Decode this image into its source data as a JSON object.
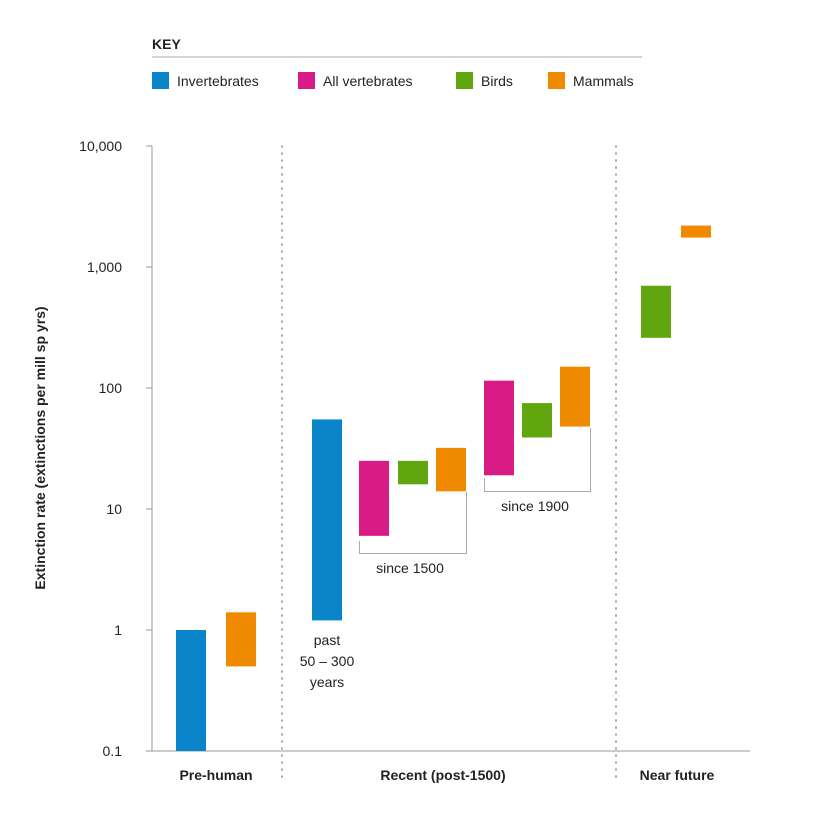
{
  "chart_data": {
    "type": "bar",
    "subtype": "floating-range",
    "title": "",
    "ylabel": "Extinction rate (extinctions per mill sp yrs)",
    "xlabel": "",
    "yscale": "log",
    "ylim": [
      0.1,
      10000
    ],
    "yticks": [
      "0.1",
      "1",
      "10",
      "100",
      "1,000",
      "10,000"
    ],
    "grid": false,
    "legend": {
      "title": "KEY",
      "placement": "top",
      "entries": [
        {
          "name": "Invertebrates",
          "color": "#0a85c9"
        },
        {
          "name": "All vertebrates",
          "color": "#d81b85"
        },
        {
          "name": "Birds",
          "color": "#61a60e"
        },
        {
          "name": "Mammals",
          "color": "#ef8a00"
        }
      ]
    },
    "categories": [
      "Pre-human",
      "Recent (post-1500)",
      "Near future"
    ],
    "annotations": {
      "past": "past",
      "past_range": "50 – 300",
      "past_years": "years",
      "since1500": "since 1500",
      "since1900": "since 1900"
    },
    "bars": [
      {
        "category": "Pre-human",
        "series": "Invertebrates",
        "low": 0.1,
        "high": 1
      },
      {
        "category": "Pre-human",
        "series": "Mammals",
        "low": 0.5,
        "high": 1.4
      },
      {
        "category": "Recent (post-1500)",
        "period": "past 50 – 300 years",
        "series": "Invertebrates",
        "low": 1.2,
        "high": 55
      },
      {
        "category": "Recent (post-1500)",
        "period": "since 1500",
        "series": "All vertebrates",
        "low": 6,
        "high": 25
      },
      {
        "category": "Recent (post-1500)",
        "period": "since 1500",
        "series": "Birds",
        "low": 16,
        "high": 25
      },
      {
        "category": "Recent (post-1500)",
        "period": "since 1500",
        "series": "Mammals",
        "low": 14,
        "high": 32
      },
      {
        "category": "Recent (post-1500)",
        "period": "since 1900",
        "series": "All vertebrates",
        "low": 19,
        "high": 115
      },
      {
        "category": "Recent (post-1500)",
        "period": "since 1900",
        "series": "Birds",
        "low": 39,
        "high": 75
      },
      {
        "category": "Recent (post-1500)",
        "period": "since 1900",
        "series": "Mammals",
        "low": 48,
        "high": 150
      },
      {
        "category": "Near future",
        "series": "Birds",
        "low": 260,
        "high": 700
      },
      {
        "category": "Near future",
        "series": "Mammals",
        "low": 1750,
        "high": 2200
      }
    ]
  }
}
